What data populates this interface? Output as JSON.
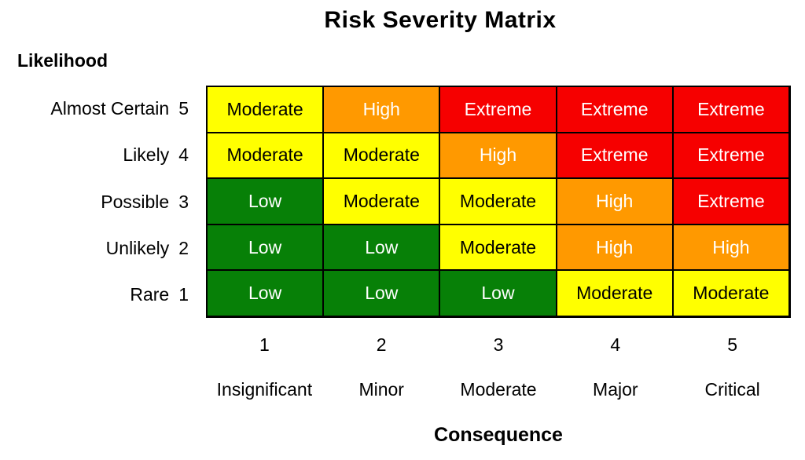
{
  "title": "Risk Severity Matrix",
  "likelihood_axis": {
    "label": "Likelihood",
    "rows": [
      {
        "name": "Almost Certain",
        "value": "5"
      },
      {
        "name": "Likely",
        "value": "4"
      },
      {
        "name": "Possible",
        "value": "3"
      },
      {
        "name": "Unlikely",
        "value": "2"
      },
      {
        "name": "Rare",
        "value": "1"
      }
    ]
  },
  "consequence_axis": {
    "label": "Consequence",
    "columns": [
      {
        "value": "1",
        "name": "Insignificant"
      },
      {
        "value": "2",
        "name": "Minor"
      },
      {
        "value": "3",
        "name": "Moderate"
      },
      {
        "value": "4",
        "name": "Major"
      },
      {
        "value": "5",
        "name": "Critical"
      }
    ]
  },
  "risk_levels": {
    "Low": {
      "bg": "#078007",
      "text": "#FFFFFF"
    },
    "Moderate": {
      "bg": "#FFFF00",
      "text": "#000000"
    },
    "High": {
      "bg": "#FF9900",
      "text": "#FFFFFF"
    },
    "Extreme": {
      "bg": "#F60000",
      "text": "#FFFFFF"
    }
  },
  "border_color": "#000000",
  "chart_data": {
    "type": "heatmap",
    "title": "Risk Severity Matrix",
    "xlabel": "Consequence",
    "ylabel": "Likelihood",
    "x_categories": [
      "Insignificant (1)",
      "Minor (2)",
      "Moderate (3)",
      "Major (4)",
      "Critical (5)"
    ],
    "y_categories": [
      "Almost Certain (5)",
      "Likely (4)",
      "Possible (3)",
      "Unlikely (2)",
      "Rare (1)"
    ],
    "cells": [
      [
        "Moderate",
        "High",
        "Extreme",
        "Extreme",
        "Extreme"
      ],
      [
        "Moderate",
        "Moderate",
        "High",
        "Extreme",
        "Extreme"
      ],
      [
        "Low",
        "Moderate",
        "Moderate",
        "High",
        "Extreme"
      ],
      [
        "Low",
        "Low",
        "Moderate",
        "High",
        "High"
      ],
      [
        "Low",
        "Low",
        "Low",
        "Moderate",
        "Moderate"
      ]
    ],
    "legend": "none",
    "grid": "on"
  }
}
